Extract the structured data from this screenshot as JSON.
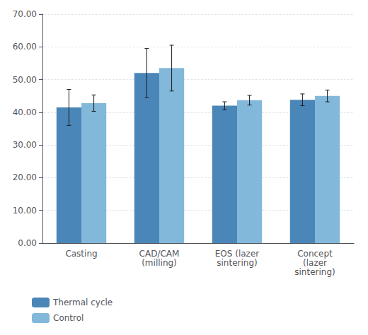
{
  "chart_data": {
    "type": "bar",
    "categories": [
      "Casting",
      "CAD/CAM\n(milling)",
      "EOS (lazer\nsintering)",
      "Concept\n(lazer\nsintering)"
    ],
    "series": [
      {
        "name": "Thermal cycle",
        "color": "#4A86B8",
        "values": [
          41.5,
          52.0,
          42.0,
          43.8
        ],
        "errors": [
          5.5,
          7.5,
          1.2,
          1.8
        ]
      },
      {
        "name": "Control",
        "color": "#82B8D9",
        "values": [
          42.8,
          53.5,
          43.7,
          45.0
        ],
        "errors": [
          2.5,
          7.0,
          1.5,
          1.8
        ]
      }
    ],
    "ylim": [
      0,
      70
    ],
    "yticks": [
      {
        "value": 0,
        "label": "0.00"
      },
      {
        "value": 10,
        "label": "10.00"
      },
      {
        "value": 20,
        "label": "20.00"
      },
      {
        "value": 30,
        "label": "30.00"
      },
      {
        "value": 40,
        "label": "40.00"
      },
      {
        "value": 50,
        "label": "50.00"
      },
      {
        "value": 60,
        "label": "60.00"
      },
      {
        "value": 70,
        "label": "70.00"
      }
    ],
    "grid": true,
    "legend": "bottom"
  }
}
